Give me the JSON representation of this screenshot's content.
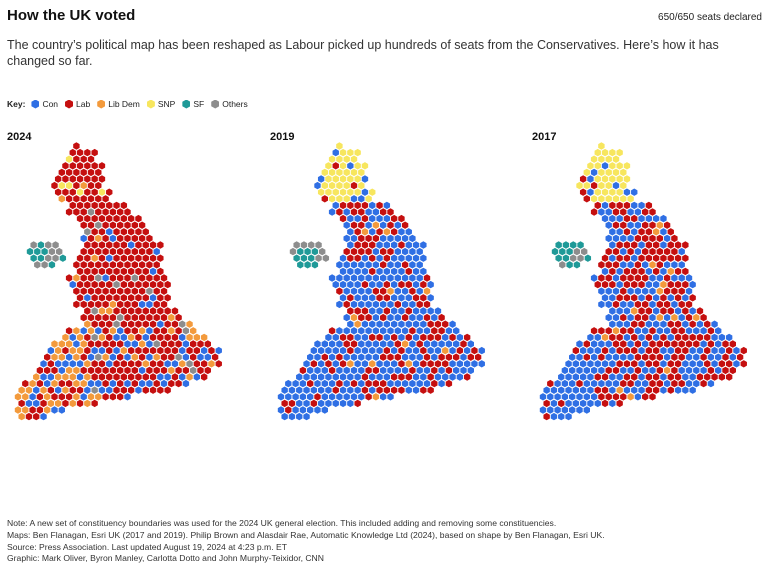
{
  "header": {
    "title": "How the UK voted",
    "seats_declared": "650/650 seats declared",
    "subtitle": "The country’s political map has been reshaped as Labour picked up hundreds of seats from the Conservatives. Here’s how it has changed so far."
  },
  "legend": {
    "key_label": "Key:",
    "items": [
      {
        "id": "con",
        "label": "Con",
        "color": "#2f6fe4"
      },
      {
        "id": "lab",
        "label": "Lab",
        "color": "#c50f0f"
      },
      {
        "id": "libdem",
        "label": "Lib Dem",
        "color": "#f39a3c"
      },
      {
        "id": "snp",
        "label": "SNP",
        "color": "#f7e65e"
      },
      {
        "id": "sf",
        "label": "SF",
        "color": "#1f9a98"
      },
      {
        "id": "others",
        "label": "Others",
        "color": "#8d8d8d"
      }
    ]
  },
  "maps": [
    {
      "year": "2024"
    },
    {
      "year": "2019"
    },
    {
      "year": "2017"
    }
  ],
  "footer": {
    "note": "Note: A new set of constituency boundaries was used for the 2024 UK general election. This included adding and removing some constituencies.",
    "maps_credit": "Maps: Ben Flanagan, Esri UK (2017 and 2019). Philip Brown and Alasdair Rae, Automatic Knowledge Ltd (2024), based on shape by Ben Flanagan, Esri UK.",
    "source": "Source: Press Association. Last updated August 19, 2024 at 4:23 p.m. ET",
    "graphic_credit": "Graphic: Mark Oliver, Byron Manley, Carlotta Dotto and John Murphy-Teixidor, CNN"
  }
}
